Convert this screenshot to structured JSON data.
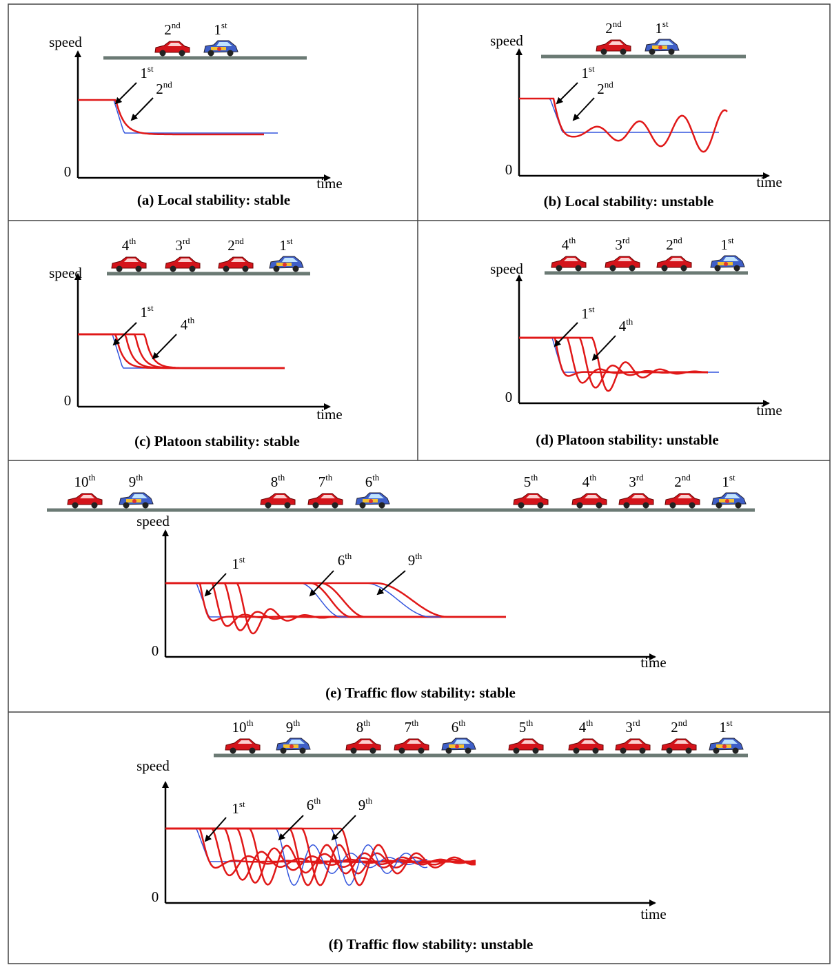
{
  "panels": [
    {
      "caption": "(a) Local stability: stable",
      "y_label": "speed",
      "origin": "0",
      "x_label": "time",
      "cars": [
        {
          "label": {
            "n": "2",
            "s": "nd"
          },
          "color": "red"
        },
        {
          "label": {
            "n": "1",
            "s": "st"
          },
          "color": "blue"
        }
      ],
      "curve_labels": [
        {
          "n": "1",
          "s": "st"
        },
        {
          "n": "2",
          "s": "nd"
        }
      ]
    },
    {
      "caption": "(b) Local stability: unstable",
      "y_label": "speed",
      "origin": "0",
      "x_label": "time",
      "cars": [
        {
          "label": {
            "n": "2",
            "s": "nd"
          },
          "color": "red"
        },
        {
          "label": {
            "n": "1",
            "s": "st"
          },
          "color": "blue"
        }
      ],
      "curve_labels": [
        {
          "n": "1",
          "s": "st"
        },
        {
          "n": "2",
          "s": "nd"
        }
      ]
    },
    {
      "caption": "(c) Platoon stability: stable",
      "y_label": "speed",
      "origin": "0",
      "x_label": "time",
      "cars": [
        {
          "label": {
            "n": "4",
            "s": "th"
          },
          "color": "red"
        },
        {
          "label": {
            "n": "3",
            "s": "rd"
          },
          "color": "red"
        },
        {
          "label": {
            "n": "2",
            "s": "nd"
          },
          "color": "red"
        },
        {
          "label": {
            "n": "1",
            "s": "st"
          },
          "color": "blue"
        }
      ],
      "curve_labels": [
        {
          "n": "1",
          "s": "st"
        },
        {
          "n": "4",
          "s": "th"
        }
      ]
    },
    {
      "caption": "(d) Platoon stability: unstable",
      "y_label": "speed",
      "origin": "0",
      "x_label": "time",
      "cars": [
        {
          "label": {
            "n": "4",
            "s": "th"
          },
          "color": "red"
        },
        {
          "label": {
            "n": "3",
            "s": "rd"
          },
          "color": "red"
        },
        {
          "label": {
            "n": "2",
            "s": "nd"
          },
          "color": "red"
        },
        {
          "label": {
            "n": "1",
            "s": "st"
          },
          "color": "blue"
        }
      ],
      "curve_labels": [
        {
          "n": "1",
          "s": "st"
        },
        {
          "n": "4",
          "s": "th"
        }
      ]
    },
    {
      "caption": "(e) Traffic flow stability: stable",
      "y_label": "speed",
      "origin": "0",
      "x_label": "time",
      "cars": [
        {
          "label": {
            "n": "10",
            "s": "th"
          },
          "color": "red"
        },
        {
          "label": {
            "n": "9",
            "s": "th"
          },
          "color": "blue"
        },
        {
          "label": {
            "n": "8",
            "s": "th"
          },
          "color": "red"
        },
        {
          "label": {
            "n": "7",
            "s": "th"
          },
          "color": "red"
        },
        {
          "label": {
            "n": "6",
            "s": "th"
          },
          "color": "blue"
        },
        {
          "label": {
            "n": "5",
            "s": "th"
          },
          "color": "red"
        },
        {
          "label": {
            "n": "4",
            "s": "th"
          },
          "color": "red"
        },
        {
          "label": {
            "n": "3",
            "s": "rd"
          },
          "color": "red"
        },
        {
          "label": {
            "n": "2",
            "s": "nd"
          },
          "color": "red"
        },
        {
          "label": {
            "n": "1",
            "s": "st"
          },
          "color": "blue"
        }
      ],
      "curve_labels": [
        {
          "n": "1",
          "s": "st"
        },
        {
          "n": "6",
          "s": "th"
        },
        {
          "n": "9",
          "s": "th"
        }
      ]
    },
    {
      "caption": "(f) Traffic flow stability: unstable",
      "y_label": "speed",
      "origin": "0",
      "x_label": "time",
      "cars": [
        {
          "label": {
            "n": "10",
            "s": "th"
          },
          "color": "red"
        },
        {
          "label": {
            "n": "9",
            "s": "th"
          },
          "color": "blue"
        },
        {
          "label": {
            "n": "8",
            "s": "th"
          },
          "color": "red"
        },
        {
          "label": {
            "n": "7",
            "s": "th"
          },
          "color": "red"
        },
        {
          "label": {
            "n": "6",
            "s": "th"
          },
          "color": "blue"
        },
        {
          "label": {
            "n": "5",
            "s": "th"
          },
          "color": "red"
        },
        {
          "label": {
            "n": "4",
            "s": "th"
          },
          "color": "red"
        },
        {
          "label": {
            "n": "3",
            "s": "rd"
          },
          "color": "red"
        },
        {
          "label": {
            "n": "2",
            "s": "nd"
          },
          "color": "red"
        },
        {
          "label": {
            "n": "1",
            "s": "st"
          },
          "color": "blue"
        }
      ],
      "curve_labels": [
        {
          "n": "1",
          "s": "st"
        },
        {
          "n": "6",
          "s": "th"
        },
        {
          "n": "9",
          "s": "th"
        }
      ]
    }
  ]
}
